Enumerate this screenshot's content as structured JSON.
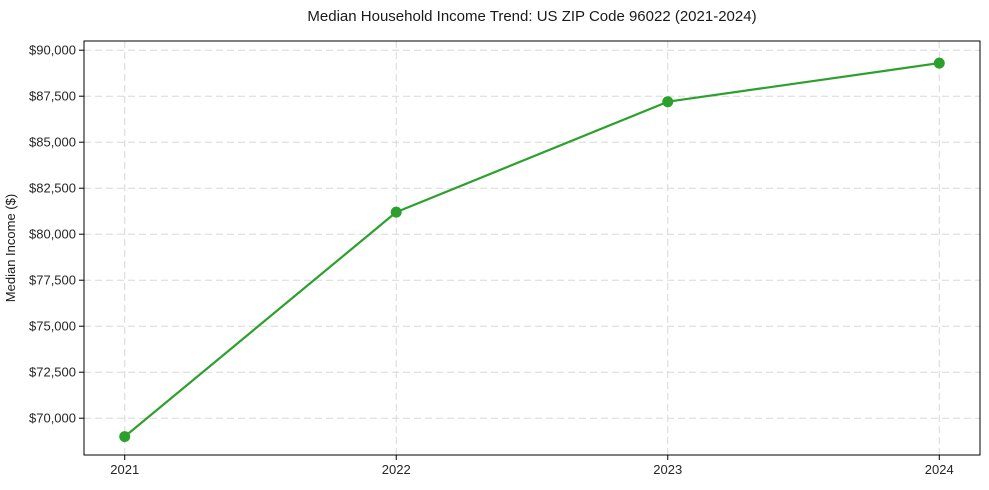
{
  "chart_data": {
    "type": "line",
    "title": "Median Household Income Trend: US ZIP Code 96022 (2021-2024)",
    "xlabel": "",
    "ylabel": "Median Income ($)",
    "categories": [
      2021,
      2022,
      2023,
      2024
    ],
    "series": [
      {
        "name": "Median Household Income",
        "values": [
          69000,
          81200,
          87200,
          89300
        ]
      }
    ],
    "xlim": [
      2020.85,
      2024.15
    ],
    "ylim": [
      68000,
      90500
    ],
    "yticks": [
      {
        "value": 70000,
        "label": "$70,000"
      },
      {
        "value": 72500,
        "label": "$72,500"
      },
      {
        "value": 75000,
        "label": "$75,000"
      },
      {
        "value": 77500,
        "label": "$77,500"
      },
      {
        "value": 80000,
        "label": "$80,000"
      },
      {
        "value": 82500,
        "label": "$82,500"
      },
      {
        "value": 85000,
        "label": "$85,000"
      },
      {
        "value": 87500,
        "label": "$87,500"
      },
      {
        "value": 90000,
        "label": "$90,000"
      }
    ],
    "xticks": [
      {
        "value": 2021,
        "label": "2021"
      },
      {
        "value": 2022,
        "label": "2022"
      },
      {
        "value": 2023,
        "label": "2023"
      },
      {
        "value": 2024,
        "label": "2024"
      }
    ],
    "grid": "both-dashed",
    "legend": "none",
    "marker": "circle",
    "colors": {
      "line": "#2ca02c",
      "marker": "#2ca02c",
      "grid": "#d8d8d8",
      "frame": "#000000",
      "tick": "#000000",
      "text": "#1a1a1a",
      "background": "#ffffff"
    }
  }
}
